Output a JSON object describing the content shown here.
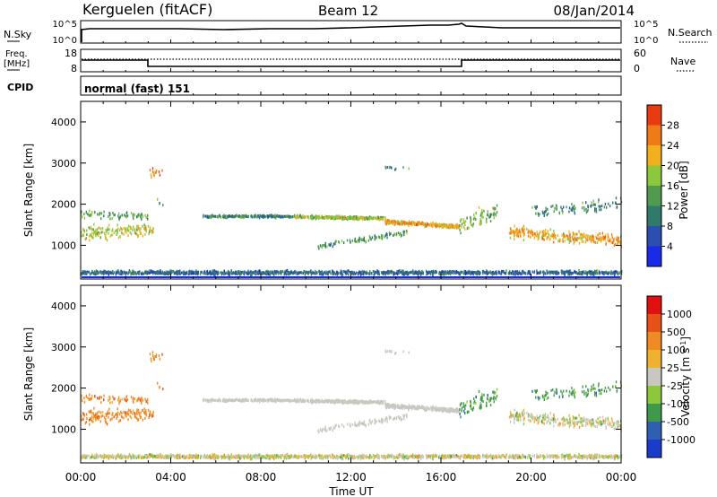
{
  "header": {
    "station": "Kerguelen (fitACF)",
    "beam": "Beam 12",
    "date": "08/Jan/2014"
  },
  "noise_panel": {
    "left_label": "N.Sky",
    "left_ticks": [
      "10^5",
      "10^0"
    ],
    "right_label": "N.Search",
    "right_ticks": [
      "10^5",
      "10^0"
    ]
  },
  "freq_panel": {
    "left_label_line1": "Freq.",
    "left_label_line2": "[MHz]",
    "left_ticks": [
      "18",
      "8"
    ],
    "right_label": "Nave",
    "right_ticks": [
      "60",
      "0"
    ]
  },
  "cpid": {
    "label": "CPID",
    "text": "normal (fast) 151"
  },
  "colors": {
    "power": [
      "#1a2be8",
      "#2a4fb0",
      "#2f7a6a",
      "#4f9a4f",
      "#8cc83c",
      "#f2b01e",
      "#f07a18",
      "#e83a10",
      "#e01010"
    ],
    "velocity": [
      "#e01010",
      "#e8501a",
      "#f08a22",
      "#f0b030",
      "#c8c8c0",
      "#8cc83c",
      "#3e9a4a",
      "#2e5fb0",
      "#1a3ccc"
    ]
  },
  "chart_data": [
    {
      "type": "heatmap",
      "title": "",
      "xlabel": "",
      "ylabel": "Slant Range [km]",
      "x_ticks": [
        "00:00",
        "04:00",
        "08:00",
        "12:00",
        "16:00",
        "20:00",
        "00:00"
      ],
      "xlim_hours": [
        0,
        24
      ],
      "ylim": [
        180,
        4500
      ],
      "y_ticks": [
        1000,
        2000,
        3000,
        4000
      ],
      "colorbar": {
        "label": "Power [dB]",
        "ticks": [
          "4",
          "8",
          "12",
          "16",
          "20",
          "24",
          "28"
        ],
        "range": [
          0,
          30
        ]
      }
    },
    {
      "type": "heatmap",
      "title": "",
      "xlabel": "Time UT",
      "ylabel": "Slant Range [km]",
      "x_ticks": [
        "00:00",
        "04:00",
        "08:00",
        "12:00",
        "16:00",
        "20:00",
        "00:00"
      ],
      "xlim_hours": [
        0,
        24
      ],
      "ylim": [
        180,
        4500
      ],
      "y_ticks": [
        1000,
        2000,
        3000,
        4000
      ],
      "colorbar": {
        "label": "Velocity [m s-1]",
        "ticks": [
          "1000",
          "500",
          "100",
          "25",
          "-25",
          "-100",
          "-500",
          "-1000"
        ]
      }
    }
  ]
}
